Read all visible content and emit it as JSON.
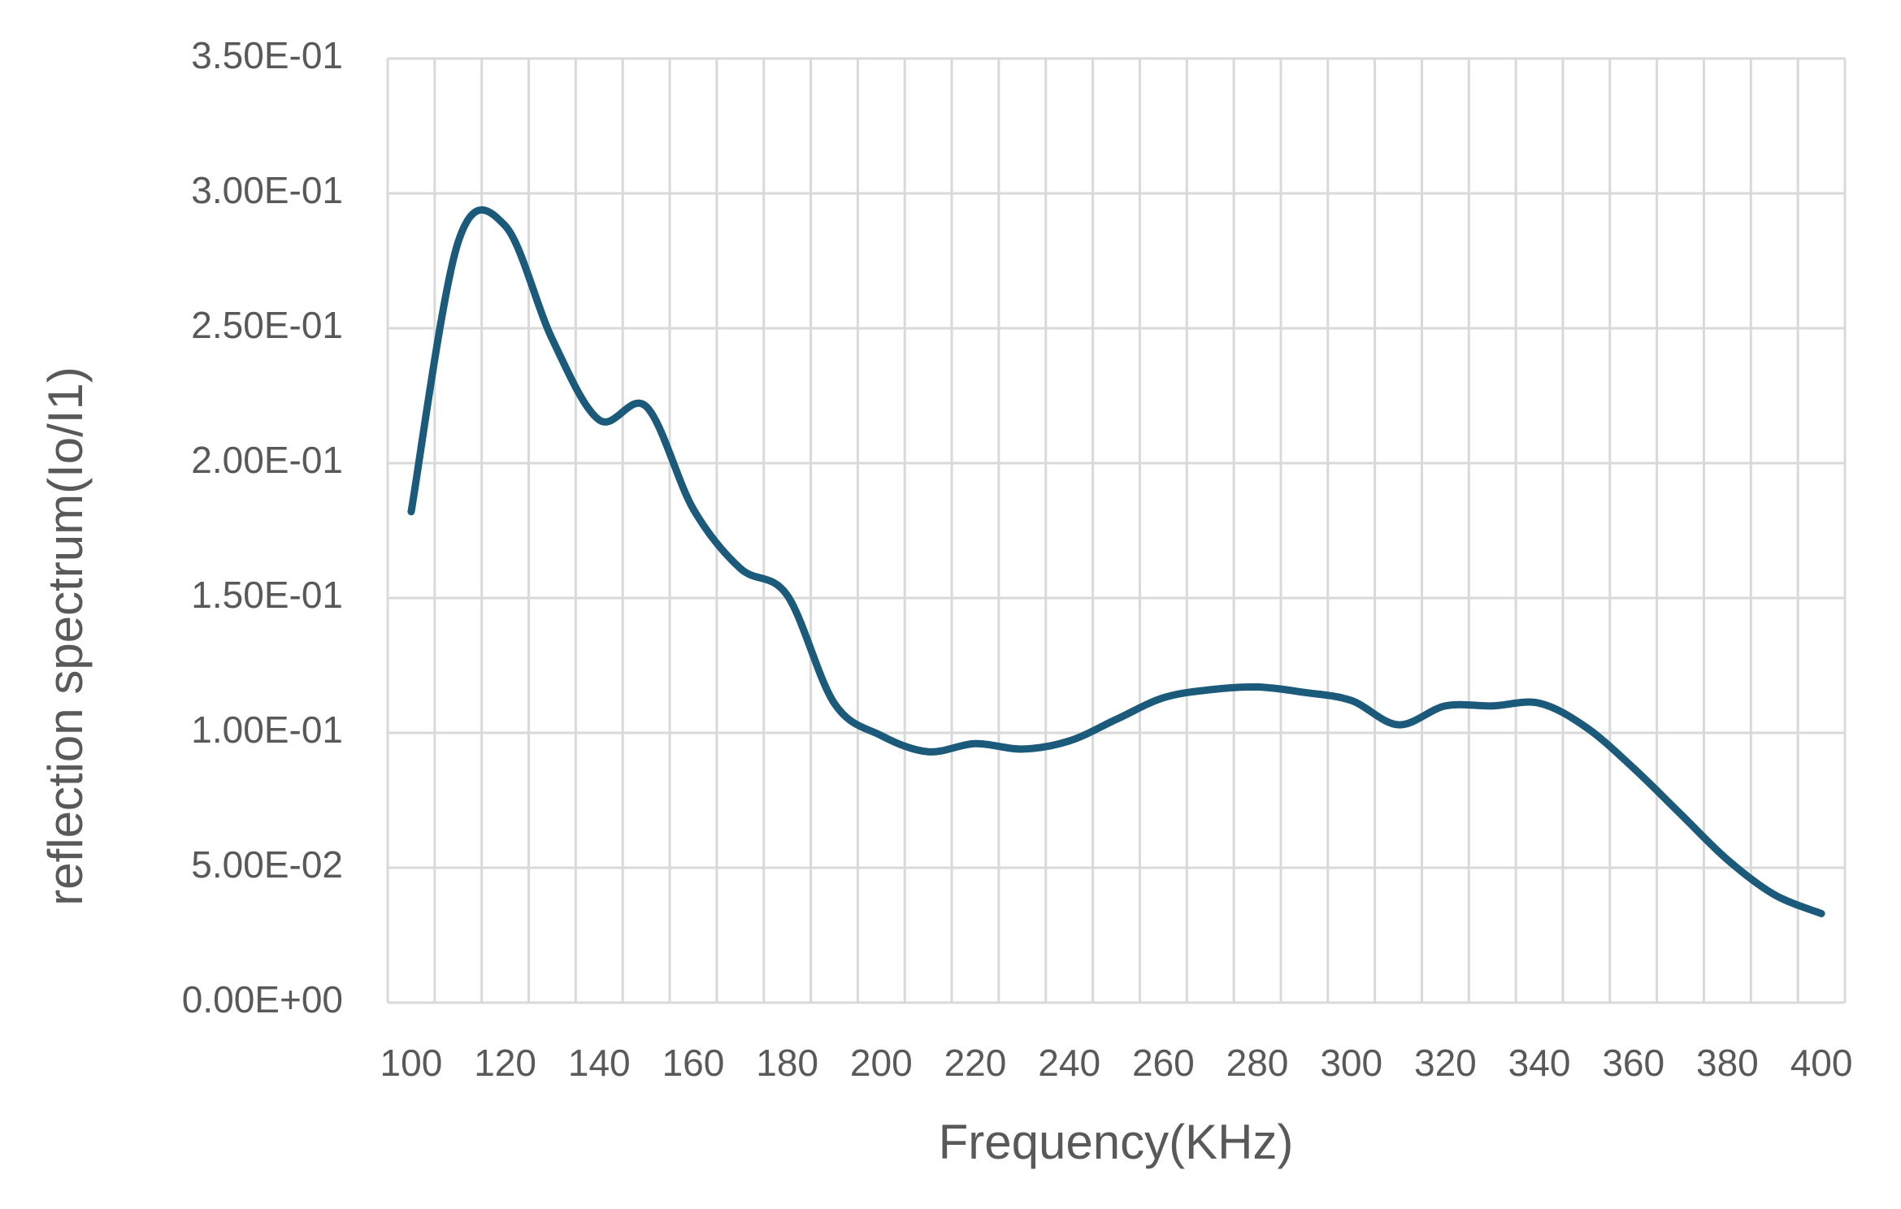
{
  "chart_data": {
    "type": "line",
    "x_label": "Frequency(KHz)",
    "y_label": "reflection  spectrum(Io/I1)",
    "categories": [
      "100",
      null,
      "120",
      null,
      "140",
      null,
      "160",
      null,
      "180",
      null,
      "200",
      null,
      "220",
      null,
      "240",
      null,
      "260",
      null,
      "280",
      null,
      "300",
      null,
      "320",
      null,
      "340",
      null,
      "360",
      null,
      "380",
      null,
      "400"
    ],
    "series": [
      {
        "name": "reflection spectrum",
        "color": "#1b5a7a",
        "values": [
          0.182,
          0.282,
          0.288,
          0.246,
          0.216,
          0.221,
          0.183,
          0.161,
          0.151,
          0.111,
          0.099,
          0.093,
          0.096,
          0.094,
          0.097,
          0.105,
          0.113,
          0.116,
          0.117,
          0.115,
          0.112,
          0.103,
          0.11,
          0.11,
          0.111,
          0.102,
          0.087,
          0.07,
          0.053,
          0.04,
          0.033
        ]
      }
    ],
    "ylim": [
      0,
      0.35
    ],
    "yticks": [
      {
        "value": 0,
        "label": "0.00E+00"
      },
      {
        "value": 0.05,
        "label": "5.00E-02"
      },
      {
        "value": 0.1,
        "label": "1.00E-01"
      },
      {
        "value": 0.15,
        "label": "1.50E-01"
      },
      {
        "value": 0.2,
        "label": "2.00E-01"
      },
      {
        "value": 0.25,
        "label": "2.50E-01"
      },
      {
        "value": 0.3,
        "label": "3.00E-01"
      },
      {
        "value": 0.35,
        "label": "3.50E-01"
      }
    ],
    "grid": true,
    "smooth": true
  }
}
